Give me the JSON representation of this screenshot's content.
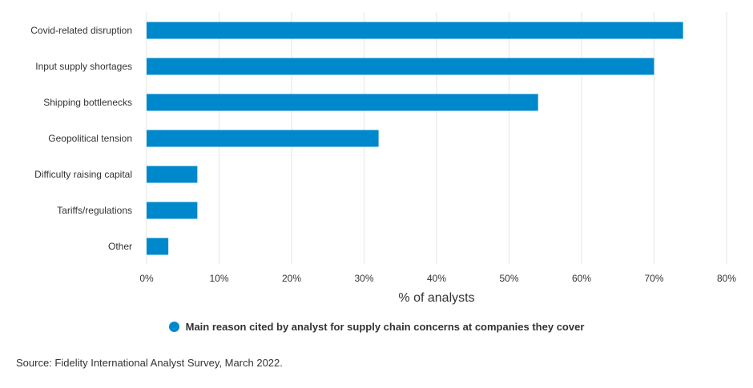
{
  "colors": {
    "bar": "#0088cc",
    "grid": "#e6e6e6",
    "text": "#333333"
  },
  "chart_data": {
    "type": "bar",
    "orientation": "horizontal",
    "categories": [
      "Covid-related disruption",
      "Input supply shortages",
      "Shipping bottlenecks",
      "Geopolitical tension",
      "Difficulty raising capital",
      "Tariffs/regulations",
      "Other"
    ],
    "series": [
      {
        "name": "Main reason cited by analyst for supply chain concerns at companies they cover",
        "values": [
          74,
          70,
          54,
          32,
          7,
          7,
          3
        ]
      }
    ],
    "x_ticks": [
      "0%",
      "10%",
      "20%",
      "30%",
      "40%",
      "50%",
      "60%",
      "70%",
      "80%"
    ],
    "xlim": [
      0,
      80
    ],
    "xlabel": "%  of analysts",
    "grid": true,
    "legend_position": "bottom-center"
  },
  "source": "Source: Fidelity International Analyst Survey, March 2022."
}
